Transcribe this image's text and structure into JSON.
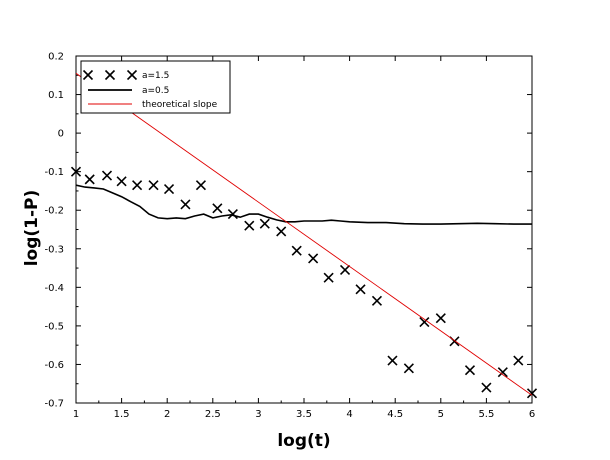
{
  "chart_data": {
    "type": "line",
    "xlabel": "log(t)",
    "ylabel": "log(1-P)",
    "xlim": [
      1,
      6
    ],
    "ylim": [
      -0.7,
      0.2
    ],
    "x_ticks": [
      1,
      1.5,
      2,
      2.5,
      3,
      3.5,
      4,
      4.5,
      5,
      5.5,
      6
    ],
    "x_tick_labels": [
      "1",
      "1.5",
      "2",
      "2.5",
      "3",
      "3.5",
      "4",
      "4.5",
      "5",
      "5.5",
      "6"
    ],
    "y_ticks": [
      0.2,
      0.1,
      0,
      -0.1,
      -0.2,
      -0.3,
      -0.4,
      -0.5,
      -0.6,
      -0.7
    ],
    "y_tick_labels": [
      "0.2",
      "0.1",
      "0",
      "-0.1",
      "-0.2",
      "-0.3",
      "-0.4",
      "-0.5",
      "-0.6",
      "-0.7"
    ],
    "grid": false,
    "legend_position": "top-left",
    "series": [
      {
        "name": "a=1.5",
        "style": "markers",
        "marker": "x",
        "color": "#000000",
        "x": [
          1.0,
          1.15,
          1.34,
          1.5,
          1.67,
          1.85,
          2.02,
          2.2,
          2.37,
          2.55,
          2.72,
          2.9,
          3.07,
          3.25,
          3.42,
          3.6,
          3.77,
          3.95,
          4.12,
          4.3,
          4.47,
          4.65,
          4.82,
          5.0,
          5.15,
          5.32,
          5.5,
          5.68,
          5.85,
          6.0
        ],
        "y": [
          -0.1,
          -0.12,
          -0.11,
          -0.125,
          -0.135,
          -0.135,
          -0.145,
          -0.185,
          -0.135,
          -0.195,
          -0.21,
          -0.24,
          -0.235,
          -0.255,
          -0.305,
          -0.325,
          -0.375,
          -0.355,
          -0.405,
          -0.435,
          -0.59,
          -0.61,
          -0.49,
          -0.48,
          -0.54,
          -0.615,
          -0.66,
          -0.62,
          -0.59,
          -0.675
        ]
      },
      {
        "name": "a=0.5",
        "style": "line",
        "color": "#000000",
        "x": [
          1.0,
          1.1,
          1.2,
          1.3,
          1.4,
          1.5,
          1.6,
          1.7,
          1.8,
          1.9,
          2.0,
          2.1,
          2.2,
          2.3,
          2.4,
          2.5,
          2.6,
          2.7,
          2.8,
          2.9,
          3.0,
          3.1,
          3.2,
          3.3,
          3.4,
          3.5,
          3.6,
          3.7,
          3.8,
          3.9,
          4.0,
          4.2,
          4.4,
          4.6,
          4.8,
          5.0,
          5.2,
          5.4,
          5.6,
          5.8,
          6.0
        ],
        "y": [
          -0.135,
          -0.14,
          -0.142,
          -0.145,
          -0.155,
          -0.165,
          -0.178,
          -0.19,
          -0.21,
          -0.22,
          -0.222,
          -0.22,
          -0.222,
          -0.215,
          -0.21,
          -0.22,
          -0.215,
          -0.212,
          -0.218,
          -0.21,
          -0.21,
          -0.218,
          -0.225,
          -0.23,
          -0.23,
          -0.228,
          -0.228,
          -0.228,
          -0.226,
          -0.228,
          -0.23,
          -0.232,
          -0.232,
          -0.235,
          -0.236,
          -0.236,
          -0.235,
          -0.234,
          -0.235,
          -0.236,
          -0.236
        ]
      },
      {
        "name": "theoretical slope",
        "style": "line",
        "color": "#e00000",
        "x": [
          1.0,
          6.0
        ],
        "y": [
          0.155,
          -0.68
        ]
      }
    ]
  }
}
